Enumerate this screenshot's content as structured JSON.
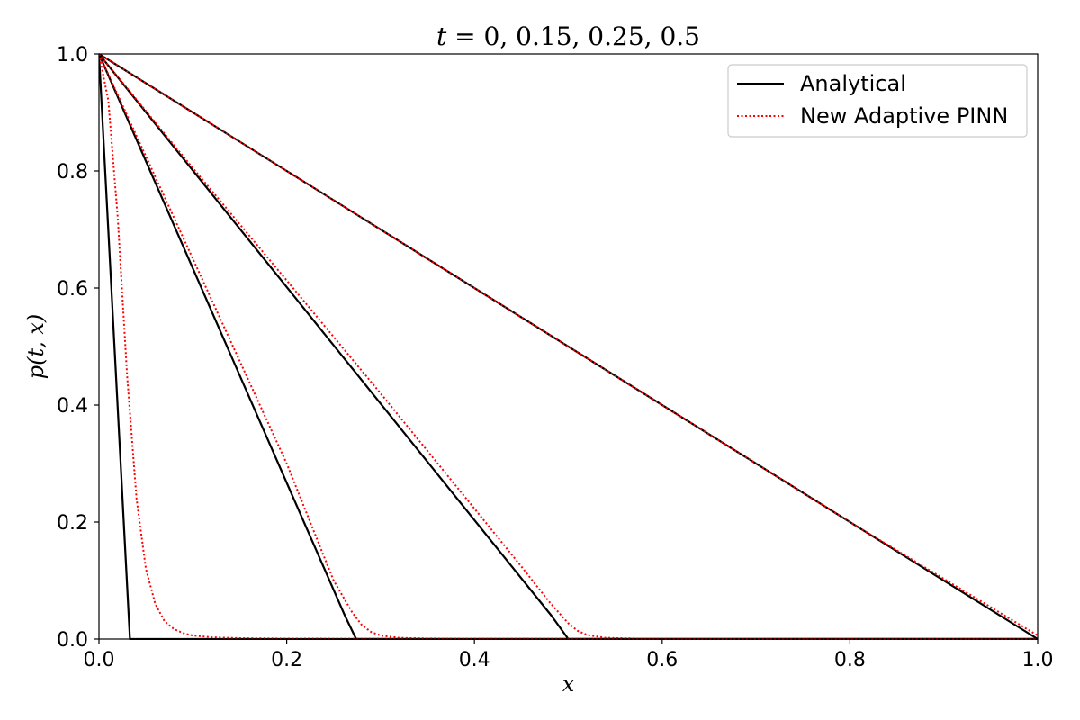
{
  "chart_data": {
    "type": "line",
    "title": "t = 0, 0.15, 0.25, 0.5",
    "xlabel": "x",
    "ylabel": "p(t, x)",
    "xlim": [
      0,
      1
    ],
    "ylim": [
      0,
      1
    ],
    "xticks": [
      "0.0",
      "0.2",
      "0.4",
      "0.6",
      "0.8",
      "1.0"
    ],
    "yticks": [
      "0.0",
      "0.2",
      "0.4",
      "0.6",
      "0.8",
      "1.0"
    ],
    "grid": false,
    "legend_position": "top-right",
    "legend": [
      {
        "label": "Analytical",
        "color": "#000000",
        "style": "solid"
      },
      {
        "label": "New Adaptive PINN",
        "color": "#ff0000",
        "style": "dotted"
      }
    ],
    "series": [
      {
        "group": "Analytical",
        "color": "#000000",
        "style": "solid",
        "x": [
          0.0,
          0.033,
          1.0
        ],
        "y": [
          1.0,
          0.0,
          0.0
        ]
      },
      {
        "group": "Analytical",
        "color": "#000000",
        "style": "solid",
        "x": [
          0.0,
          0.262,
          0.274,
          1.0
        ],
        "y": [
          1.0,
          0.04,
          0.0,
          0.0
        ]
      },
      {
        "group": "Analytical",
        "color": "#000000",
        "style": "solid",
        "x": [
          0.0,
          0.482,
          0.5,
          1.0
        ],
        "y": [
          1.0,
          0.04,
          0.0,
          0.0
        ]
      },
      {
        "group": "Analytical",
        "color": "#000000",
        "style": "solid",
        "x": [
          0.0,
          1.0
        ],
        "y": [
          1.0,
          0.0
        ]
      },
      {
        "group": "New Adaptive PINN",
        "color": "#ff0000",
        "style": "dotted",
        "x": [
          0.0,
          0.01,
          0.02,
          0.03,
          0.04,
          0.05,
          0.06,
          0.07,
          0.08,
          0.09,
          0.1,
          0.12,
          0.15,
          0.2,
          1.0
        ],
        "y": [
          1.0,
          0.92,
          0.72,
          0.45,
          0.24,
          0.12,
          0.06,
          0.03,
          0.017,
          0.01,
          0.006,
          0.003,
          0.0015,
          0.0007,
          0.0
        ]
      },
      {
        "group": "New Adaptive PINN",
        "color": "#ff0000",
        "style": "dotted",
        "x": [
          0.0,
          0.1,
          0.2,
          0.25,
          0.27,
          0.28,
          0.29,
          0.3,
          0.32,
          0.35,
          0.4,
          1.0
        ],
        "y": [
          1.0,
          0.65,
          0.3,
          0.1,
          0.045,
          0.024,
          0.012,
          0.006,
          0.002,
          0.001,
          0.0004,
          0.0
        ]
      },
      {
        "group": "New Adaptive PINN",
        "color": "#ff0000",
        "style": "dotted",
        "x": [
          0.0,
          0.1,
          0.2,
          0.3,
          0.4,
          0.45,
          0.48,
          0.5,
          0.51,
          0.52,
          0.54,
          0.58,
          0.65,
          1.0
        ],
        "y": [
          1.0,
          0.805,
          0.613,
          0.42,
          0.223,
          0.124,
          0.063,
          0.027,
          0.014,
          0.007,
          0.002,
          0.0006,
          0.0002,
          0.0
        ]
      },
      {
        "group": "New Adaptive PINN",
        "color": "#ff0000",
        "style": "dotted",
        "x": [
          0.0,
          0.2,
          0.4,
          0.6,
          0.8,
          1.0
        ],
        "y": [
          1.0,
          0.8,
          0.6,
          0.4,
          0.2,
          0.006
        ]
      }
    ]
  }
}
